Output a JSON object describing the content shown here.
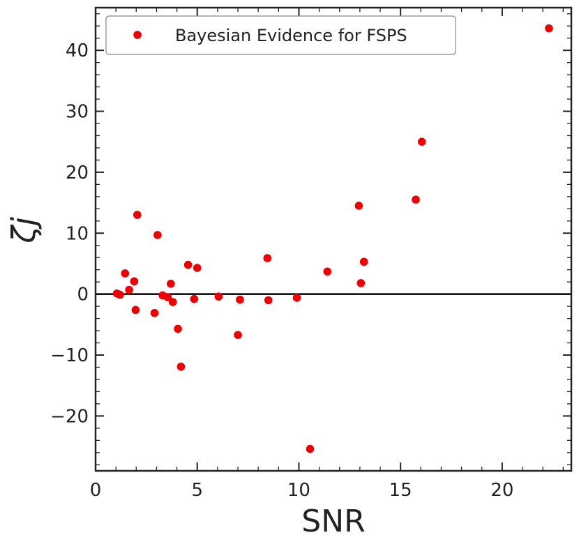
{
  "chart_data": {
    "type": "scatter",
    "xlabel": "SNR",
    "ylabel": "ζj",
    "xlim": [
      0,
      23.4
    ],
    "ylim": [
      -29,
      47
    ],
    "xticks": [
      0,
      5,
      10,
      15,
      20
    ],
    "yticks": [
      -20,
      -10,
      0,
      10,
      20,
      30,
      40
    ],
    "xtick_labels": [
      "0",
      "5",
      "10",
      "15",
      "20"
    ],
    "ytick_labels": [
      "−20",
      "−10",
      "0",
      "10",
      "20",
      "30",
      "40"
    ],
    "grid": false,
    "hline": 0,
    "legend": {
      "position": "top-left",
      "entries": [
        "Bayesian Evidence for FSPS"
      ]
    },
    "series": [
      {
        "name": "Bayesian Evidence for FSPS",
        "color": "#ee0000",
        "marker": "circle",
        "points": [
          [
            1.05,
            0.1
          ],
          [
            1.2,
            -0.1
          ],
          [
            1.45,
            3.4
          ],
          [
            1.65,
            0.7
          ],
          [
            1.9,
            2.1
          ],
          [
            1.97,
            -2.6
          ],
          [
            2.05,
            13.0
          ],
          [
            2.9,
            -3.1
          ],
          [
            3.05,
            9.7
          ],
          [
            3.3,
            -0.2
          ],
          [
            3.55,
            -0.5
          ],
          [
            3.7,
            1.7
          ],
          [
            3.8,
            -1.3
          ],
          [
            4.05,
            -5.7
          ],
          [
            4.2,
            -11.9
          ],
          [
            4.55,
            4.8
          ],
          [
            4.85,
            -0.8
          ],
          [
            5.0,
            4.3
          ],
          [
            6.05,
            -0.4
          ],
          [
            7.0,
            -6.7
          ],
          [
            7.1,
            -0.9
          ],
          [
            8.45,
            5.9
          ],
          [
            8.5,
            -1.0
          ],
          [
            9.9,
            -0.6
          ],
          [
            10.55,
            -25.4
          ],
          [
            11.4,
            3.7
          ],
          [
            12.95,
            14.5
          ],
          [
            13.05,
            1.8
          ],
          [
            13.2,
            5.3
          ],
          [
            15.75,
            15.5
          ],
          [
            16.05,
            25.0
          ],
          [
            22.3,
            43.6
          ]
        ]
      }
    ]
  }
}
